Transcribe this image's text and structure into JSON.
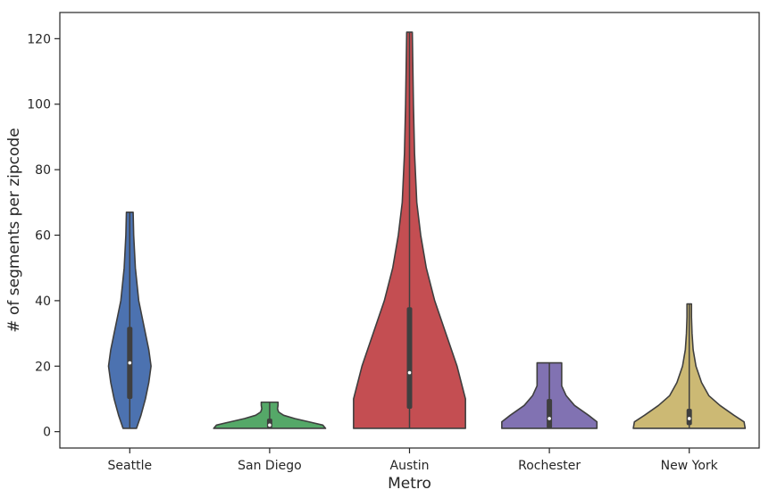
{
  "chart_data": {
    "type": "violin",
    "xlabel": "Metro",
    "ylabel": "# of segments per zipcode",
    "ylim": [
      -5,
      128
    ],
    "yticks": [
      0,
      20,
      40,
      60,
      80,
      100,
      120
    ],
    "ytick_labels": [
      "0",
      "20",
      "40",
      "60",
      "80",
      "100",
      "120"
    ],
    "grid": false,
    "categories": [
      "Seattle",
      "San Diego",
      "Austin",
      "Rochester",
      "New York"
    ],
    "series": [
      {
        "category": "Seattle",
        "color": "#4c72b0",
        "min": 1,
        "q1": 10,
        "median": 21,
        "q3": 32,
        "max": 67,
        "density": [
          [
            1,
            0.012
          ],
          [
            5,
            0.02
          ],
          [
            10,
            0.028
          ],
          [
            15,
            0.034
          ],
          [
            20,
            0.038
          ],
          [
            25,
            0.034
          ],
          [
            30,
            0.028
          ],
          [
            35,
            0.022
          ],
          [
            40,
            0.016
          ],
          [
            50,
            0.01
          ],
          [
            60,
            0.007
          ],
          [
            67,
            0.006
          ]
        ]
      },
      {
        "category": "San Diego",
        "color": "#55a868",
        "min": 1,
        "q1": 1,
        "median": 2,
        "q3": 4,
        "max": 9,
        "density": [
          [
            1,
            0.1
          ],
          [
            2,
            0.095
          ],
          [
            3,
            0.07
          ],
          [
            4,
            0.045
          ],
          [
            5,
            0.025
          ],
          [
            6,
            0.016
          ],
          [
            7,
            0.014
          ],
          [
            8,
            0.015
          ],
          [
            9,
            0.015
          ]
        ]
      },
      {
        "category": "Austin",
        "color": "#c44e52",
        "min": 1,
        "q1": 7,
        "median": 18,
        "q3": 38,
        "max": 122,
        "density": [
          [
            1,
            0.1
          ],
          [
            10,
            0.1
          ],
          [
            20,
            0.085
          ],
          [
            30,
            0.065
          ],
          [
            40,
            0.045
          ],
          [
            50,
            0.03
          ],
          [
            60,
            0.02
          ],
          [
            70,
            0.013
          ],
          [
            85,
            0.009
          ],
          [
            100,
            0.007
          ],
          [
            122,
            0.005
          ]
        ]
      },
      {
        "category": "Rochester",
        "color": "#8172b2",
        "min": 1,
        "q1": 1,
        "median": 4,
        "q3": 10,
        "max": 21,
        "density": [
          [
            1,
            0.085
          ],
          [
            3,
            0.085
          ],
          [
            5,
            0.07
          ],
          [
            8,
            0.045
          ],
          [
            11,
            0.03
          ],
          [
            14,
            0.022
          ],
          [
            17,
            0.022
          ],
          [
            21,
            0.022
          ]
        ]
      },
      {
        "category": "New York",
        "color": "#ccb974",
        "min": 1,
        "q1": 2,
        "median": 4,
        "q3": 7,
        "max": 39,
        "density": [
          [
            1,
            0.1
          ],
          [
            3,
            0.098
          ],
          [
            5,
            0.08
          ],
          [
            8,
            0.055
          ],
          [
            11,
            0.035
          ],
          [
            15,
            0.022
          ],
          [
            20,
            0.012
          ],
          [
            25,
            0.007
          ],
          [
            30,
            0.005
          ],
          [
            35,
            0.004
          ],
          [
            39,
            0.004
          ]
        ]
      }
    ]
  }
}
